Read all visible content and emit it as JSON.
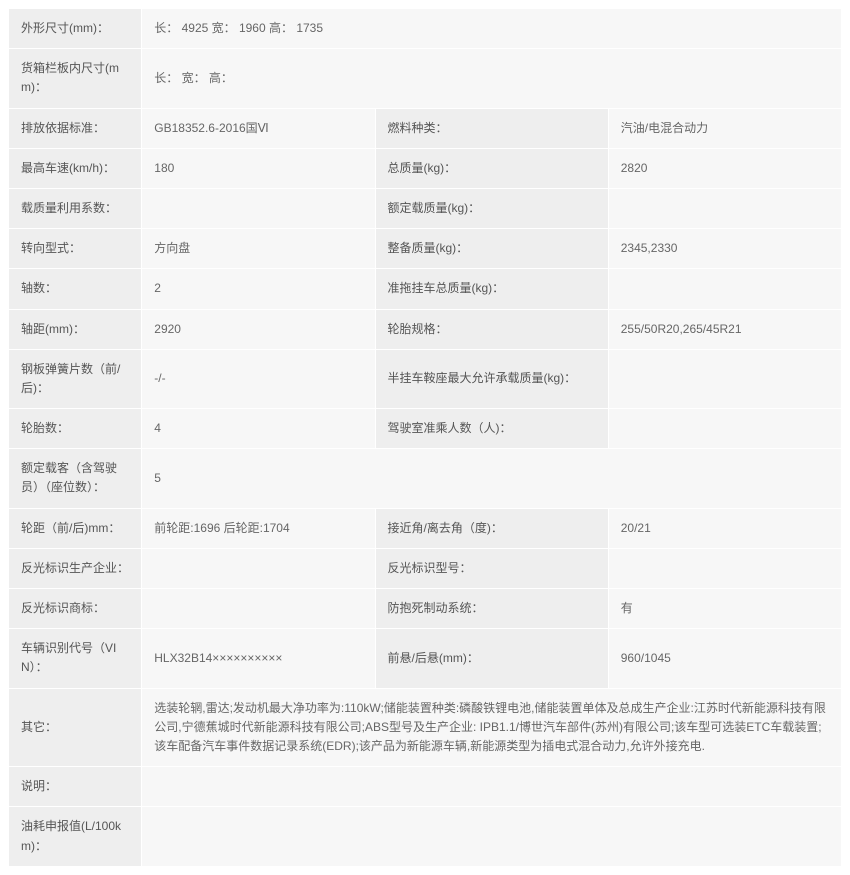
{
  "rows": [
    {
      "cols": [
        {
          "cls": "label",
          "w": "16%",
          "k": "labels.dim"
        },
        {
          "cls": "value",
          "w": "84%",
          "span": 3,
          "k": "values.dim"
        }
      ]
    },
    {
      "cols": [
        {
          "cls": "label",
          "w": "16%",
          "k": "labels.cargo"
        },
        {
          "cls": "value",
          "w": "84%",
          "span": 3,
          "k": "values.cargo"
        }
      ]
    },
    {
      "cols": [
        {
          "cls": "label",
          "w": "16%",
          "k": "labels.emission"
        },
        {
          "cls": "value",
          "w": "34%",
          "k": "values.emission"
        },
        {
          "cls": "label",
          "w": "16%",
          "k": "labels.fueltype"
        },
        {
          "cls": "value",
          "w": "34%",
          "k": "values.fueltype"
        }
      ]
    },
    {
      "cols": [
        {
          "cls": "label",
          "w": "16%",
          "k": "labels.maxspeed"
        },
        {
          "cls": "value",
          "w": "34%",
          "k": "values.maxspeed"
        },
        {
          "cls": "label",
          "w": "16%",
          "k": "labels.grossmass"
        },
        {
          "cls": "value",
          "w": "34%",
          "k": "values.grossmass"
        }
      ]
    },
    {
      "cols": [
        {
          "cls": "label",
          "w": "16%",
          "k": "labels.loadcoef"
        },
        {
          "cls": "value",
          "w": "34%",
          "k": "values.loadcoef"
        },
        {
          "cls": "label",
          "w": "16%",
          "k": "labels.ratedload"
        },
        {
          "cls": "value",
          "w": "34%",
          "k": "values.ratedload"
        }
      ]
    },
    {
      "cols": [
        {
          "cls": "label",
          "w": "16%",
          "k": "labels.steering"
        },
        {
          "cls": "value",
          "w": "34%",
          "k": "values.steering"
        },
        {
          "cls": "label",
          "w": "16%",
          "k": "labels.curbmass"
        },
        {
          "cls": "value",
          "w": "34%",
          "k": "values.curbmass"
        }
      ]
    },
    {
      "cols": [
        {
          "cls": "label",
          "w": "16%",
          "k": "labels.axlenum"
        },
        {
          "cls": "value",
          "w": "34%",
          "k": "values.axlenum"
        },
        {
          "cls": "label",
          "w": "16%",
          "k": "labels.trailermass"
        },
        {
          "cls": "value",
          "w": "34%",
          "k": "values.trailermass"
        }
      ]
    },
    {
      "cols": [
        {
          "cls": "label",
          "w": "16%",
          "k": "labels.wheelbase"
        },
        {
          "cls": "value",
          "w": "34%",
          "k": "values.wheelbase"
        },
        {
          "cls": "label",
          "w": "16%",
          "k": "labels.tirespec"
        },
        {
          "cls": "value",
          "w": "34%",
          "k": "values.tirespec"
        }
      ]
    },
    {
      "cols": [
        {
          "cls": "label",
          "w": "16%",
          "k": "labels.leafspring"
        },
        {
          "cls": "value",
          "w": "34%",
          "k": "values.leafspring"
        },
        {
          "cls": "label",
          "w": "16%",
          "k": "labels.saddlemass"
        },
        {
          "cls": "value",
          "w": "34%",
          "k": "values.saddlemass"
        }
      ]
    },
    {
      "cols": [
        {
          "cls": "label",
          "w": "16%",
          "k": "labels.tirenum"
        },
        {
          "cls": "value",
          "w": "34%",
          "k": "values.tirenum"
        },
        {
          "cls": "label",
          "w": "16%",
          "k": "labels.cabseats"
        },
        {
          "cls": "value",
          "w": "34%",
          "k": "values.cabseats"
        }
      ]
    },
    {
      "cols": [
        {
          "cls": "label",
          "w": "16%",
          "k": "labels.ratedpass"
        },
        {
          "cls": "value",
          "w": "84%",
          "span": 3,
          "k": "values.ratedpass"
        }
      ]
    },
    {
      "cols": [
        {
          "cls": "label",
          "w": "16%",
          "k": "labels.track"
        },
        {
          "cls": "value",
          "w": "34%",
          "k": "values.track"
        },
        {
          "cls": "label",
          "w": "16%",
          "k": "labels.approach"
        },
        {
          "cls": "value",
          "w": "34%",
          "k": "values.approach"
        }
      ]
    },
    {
      "cols": [
        {
          "cls": "label",
          "w": "16%",
          "k": "labels.reflmfr"
        },
        {
          "cls": "value",
          "w": "34%",
          "k": "values.reflmfr"
        },
        {
          "cls": "label",
          "w": "16%",
          "k": "labels.reflmodel"
        },
        {
          "cls": "value",
          "w": "34%",
          "k": "values.reflmodel"
        }
      ]
    },
    {
      "cols": [
        {
          "cls": "label",
          "w": "16%",
          "k": "labels.refltm"
        },
        {
          "cls": "value",
          "w": "34%",
          "k": "values.refltm"
        },
        {
          "cls": "label",
          "w": "16%",
          "k": "labels.abs"
        },
        {
          "cls": "value",
          "w": "34%",
          "k": "values.abs"
        }
      ]
    },
    {
      "cols": [
        {
          "cls": "label",
          "w": "16%",
          "k": "labels.vin"
        },
        {
          "cls": "value",
          "w": "34%",
          "k": "values.vin"
        },
        {
          "cls": "label",
          "w": "16%",
          "k": "labels.overhang"
        },
        {
          "cls": "value",
          "w": "34%",
          "k": "values.overhang"
        }
      ]
    },
    {
      "cols": [
        {
          "cls": "label",
          "w": "16%",
          "k": "labels.other"
        },
        {
          "cls": "full",
          "w": "84%",
          "span": 3,
          "k": "values.other"
        }
      ]
    },
    {
      "cols": [
        {
          "cls": "label",
          "w": "16%",
          "k": "labels.desc"
        },
        {
          "cls": "full",
          "w": "84%",
          "span": 3,
          "k": "values.desc"
        }
      ]
    },
    {
      "cols": [
        {
          "cls": "label",
          "w": "16%",
          "k": "labels.fuel"
        },
        {
          "cls": "full",
          "w": "84%",
          "span": 3,
          "k": "values.fuel"
        }
      ]
    }
  ],
  "labels": {
    "dim": "外形尺寸(mm)：",
    "cargo": "货箱栏板内尺寸(mm)：",
    "emission": "排放依据标准：",
    "fueltype": "燃料种类：",
    "maxspeed": "最高车速(km/h)：",
    "grossmass": "总质量(kg)：",
    "loadcoef": "载质量利用系数：",
    "ratedload": "额定载质量(kg)：",
    "steering": "转向型式：",
    "curbmass": "整备质量(kg)：",
    "axlenum": "轴数：",
    "trailermass": "准拖挂车总质量(kg)：",
    "wheelbase": "轴距(mm)：",
    "tirespec": "轮胎规格：",
    "leafspring": "钢板弹簧片数（前/后)：",
    "saddlemass": "半挂车鞍座最大允许承载质量(kg)：",
    "tirenum": "轮胎数：",
    "cabseats": "驾驶室准乘人数（人)：",
    "ratedpass": "额定载客（含驾驶员）（座位数）：",
    "track": "轮距（前/后)mm：",
    "approach": "接近角/离去角（度)：",
    "reflmfr": "反光标识生产企业：",
    "reflmodel": "反光标识型号：",
    "refltm": "反光标识商标：",
    "abs": "防抱死制动系统：",
    "vin": "车辆识别代号（VIN）：",
    "overhang": "前悬/后悬(mm)：",
    "other": "其它：",
    "desc": "说明：",
    "fuel": "油耗申报值(L/100km)："
  },
  "values": {
    "dim": "长： 4925 宽： 1960 高： 1735",
    "cargo": "长： 宽： 高：",
    "emission": "GB18352.6-2016国Ⅵ",
    "fueltype": "汽油/电混合动力",
    "maxspeed": "180",
    "grossmass": "2820",
    "loadcoef": "",
    "ratedload": "",
    "steering": "方向盘",
    "curbmass": "2345,2330",
    "axlenum": "2",
    "trailermass": "",
    "wheelbase": "2920",
    "tirespec": "255/50R20,265/45R21",
    "leafspring": "-/-",
    "saddlemass": "",
    "tirenum": "4",
    "cabseats": "",
    "ratedpass": "5",
    "track": "前轮距:1696 后轮距:1704",
    "approach": "20/21",
    "reflmfr": "",
    "reflmodel": "",
    "refltm": "",
    "abs": "有",
    "vin": "HLX32B14××××××××××",
    "overhang": "960/1045",
    "other": "选装轮辋,雷达;发动机最大净功率为:110kW;储能装置种类:磷酸铁锂电池,储能装置单体及总成生产企业:江苏时代新能源科技有限公司,宁德蕉城时代新能源科技有限公司;ABS型号及生产企业: IPB1.1/博世汽车部件(苏州)有限公司;该车型可选装ETC车载装置;该车配备汽车事件数据记录系统(EDR);该产品为新能源车辆,新能源类型为插电式混合动力,允许外接充电.",
    "desc": "",
    "fuel": ""
  }
}
